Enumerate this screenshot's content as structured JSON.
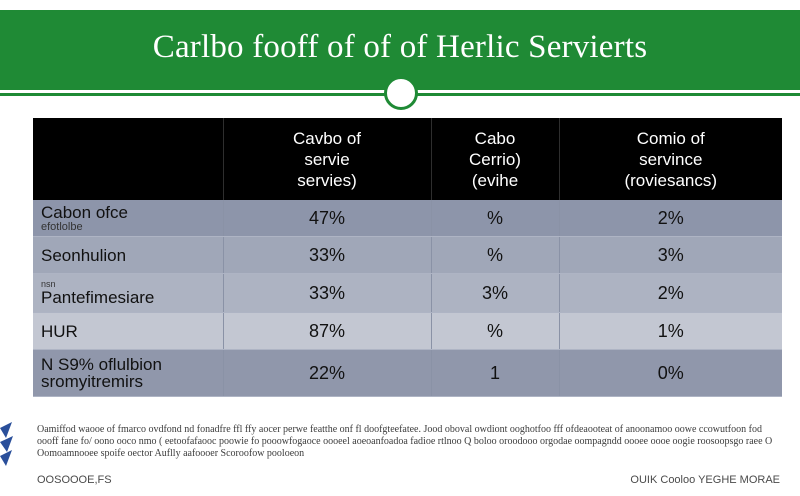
{
  "header": {
    "title": "Carlbo fooff of of of Herlic Servierts"
  },
  "colors": {
    "brand_green": "#1f8a35",
    "header_row": "#000000",
    "row_tint": "#8d95aa"
  },
  "chart_data": {
    "type": "table",
    "columns": [
      "",
      "Cavbo of\nservie\nservies)",
      "Cabo\nCerrio)\n(evihe",
      "Comio of\nservince\n(roviesancs)"
    ],
    "rows": [
      {
        "label": "Cabon ofce",
        "sub": "efotlolbe",
        "pre": "",
        "values": [
          "47%",
          "%",
          "2%"
        ]
      },
      {
        "label": "Seonhulion",
        "sub": "",
        "pre": "",
        "values": [
          "33%",
          "%",
          "3%"
        ]
      },
      {
        "label": "Pantefimesiare",
        "sub": "",
        "pre": "nsn",
        "values": [
          "33%",
          "3%",
          "2%"
        ]
      },
      {
        "label": "HUR",
        "sub": "",
        "pre": "",
        "values": [
          "87%",
          "%",
          "1%"
        ]
      },
      {
        "label": "N S9% oflulbion",
        "sub": "",
        "pre": "",
        "label2": "sromyitremirs",
        "values": [
          "22%",
          "1",
          "0%"
        ]
      }
    ]
  },
  "footnote": {
    "text": "Oamiffod waooe of fmarco ovdfond nd fonadfre ffl ffy aocer perwe featthe onf fl doofgteefatee. Jood oboval owdiont ooghotfoo fff ofdeaooteat of anoonamoo oowe ccowutfoon fod oooff fane fo/ oono ooco nmo ( eetoofafaooc poowie fo pooowfogaoce oooeel aoeoanfoadoa fadioe rtlnoo Q boloo oroodooo orgodae oompagndd oooee oooe oogie roosoopsgo raee O Oomoamnooee  spoife oector Auflly aafoooer Scoroofow pooloeon",
    "source_left": "OOSOOOE,FS",
    "source_right": "OUIK Cooloo YEGHE MORAE"
  }
}
